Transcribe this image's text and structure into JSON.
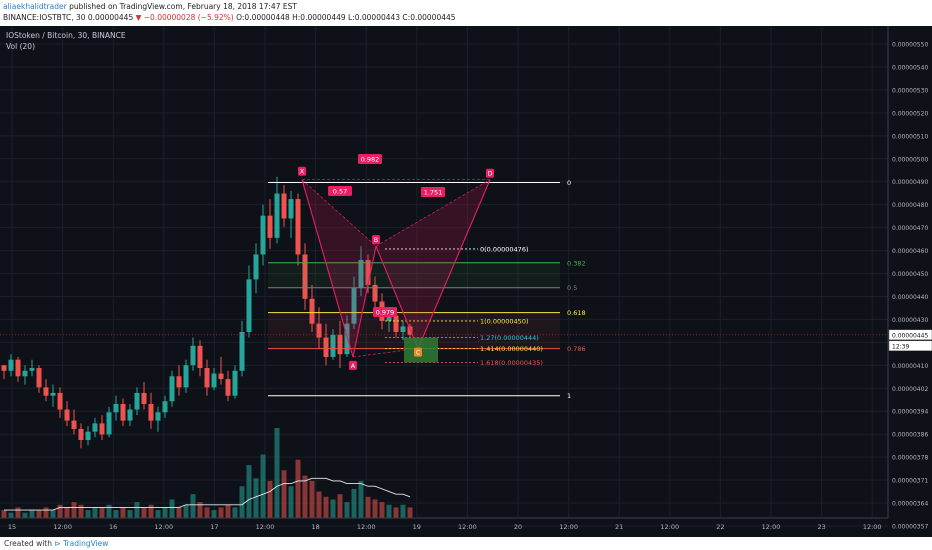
{
  "header": {
    "user": "aliaekhalidtrader",
    "published": "published on TradingView.com, February 18, 2018 17:47 EST",
    "ticker_line": "BINANCE:IOSTBTC, 30  0.00000445",
    "change": "▼ −0.00000028 (−5.92%)",
    "ohlc": "O:0.00000448  H:0.00000449  L:0.00000443  C:0.00000445"
  },
  "legend": {
    "symbol": "IOStoken / Bitcoin, 30, BINANCE",
    "volume": "Vol (20)"
  },
  "footer": {
    "created_with": "Created with",
    "brand": "TradingView"
  },
  "colors": {
    "background": "#0e1218",
    "up": "#26a69a",
    "down": "#ef5350",
    "pattern": "#e91e63",
    "fib_green": "#4caf50",
    "fib_yellow": "#ffeb3b",
    "fib_red": "#ef5350",
    "price_badge": "#c62828",
    "target_box": "#2e7d32"
  },
  "chart_data": {
    "type": "candlestick",
    "price_axis": {
      "range": [
        3.55e-06,
        5.5e-06
      ],
      "ticks": [
        "0.00000550",
        "0.00000540",
        "0.00000530",
        "0.00000520",
        "0.00000510",
        "0.00000500",
        "0.00000490",
        "0.00000480",
        "0.00000470",
        "0.00000460",
        "0.00000450",
        "0.00000440",
        "0.00000430",
        "0.00000420",
        "0.00000410",
        "0.00000402",
        "0.00000394",
        "0.00000386",
        "0.00000378",
        "0.00000371",
        "0.00000364",
        "0.00000357"
      ],
      "last_price": "0.00000445",
      "countdown": "12:39"
    },
    "time_axis": [
      "15",
      "12:00",
      "16",
      "12:00",
      "17",
      "12:00",
      "18",
      "12:00",
      "19",
      "12:00",
      "20",
      "12:00",
      "21",
      "12:00",
      "22",
      "12:00",
      "23",
      "12:00"
    ],
    "ohlc": [
      [
        4.34e-06,
        4.34e-06,
        4.29e-06,
        4.32e-06
      ],
      [
        4.32e-06,
        4.38e-06,
        4.3e-06,
        4.36e-06
      ],
      [
        4.36e-06,
        4.37e-06,
        4.28e-06,
        4.3e-06
      ],
      [
        4.3e-06,
        4.34e-06,
        4.27e-06,
        4.32e-06
      ],
      [
        4.32e-06,
        4.36e-06,
        4.3e-06,
        4.33e-06
      ],
      [
        4.33e-06,
        4.34e-06,
        4.24e-06,
        4.26e-06
      ],
      [
        4.26e-06,
        4.29e-06,
        4.21e-06,
        4.23e-06
      ],
      [
        4.23e-06,
        4.27e-06,
        4.19e-06,
        4.24e-06
      ],
      [
        4.24e-06,
        4.26e-06,
        4.15e-06,
        4.18e-06
      ],
      [
        4.18e-06,
        4.21e-06,
        4.12e-06,
        4.14e-06
      ],
      [
        4.14e-06,
        4.18e-06,
        4.09e-06,
        4.11e-06
      ],
      [
        4.11e-06,
        4.13e-06,
        4.04e-06,
        4.07e-06
      ],
      [
        4.07e-06,
        4.12e-06,
        4.05e-06,
        4.1e-06
      ],
      [
        4.1e-06,
        4.15e-06,
        4.08e-06,
        4.13e-06
      ],
      [
        4.13e-06,
        4.16e-06,
        4.07e-06,
        4.09e-06
      ],
      [
        4.09e-06,
        4.19e-06,
        4.08e-06,
        4.17e-06
      ],
      [
        4.17e-06,
        4.23e-06,
        4.14e-06,
        4.2e-06
      ],
      [
        4.2e-06,
        4.22e-06,
        4.12e-06,
        4.14e-06
      ],
      [
        4.14e-06,
        4.2e-06,
        4.12e-06,
        4.18e-06
      ],
      [
        4.18e-06,
        4.26e-06,
        4.16e-06,
        4.24e-06
      ],
      [
        4.24e-06,
        4.28e-06,
        4.18e-06,
        4.2e-06
      ],
      [
        4.2e-06,
        4.24e-06,
        4.11e-06,
        4.14e-06
      ],
      [
        4.14e-06,
        4.19e-06,
        4.1e-06,
        4.17e-06
      ],
      [
        4.17e-06,
        4.23e-06,
        4.15e-06,
        4.21e-06
      ],
      [
        4.21e-06,
        4.32e-06,
        4.19e-06,
        4.3e-06
      ],
      [
        4.3e-06,
        4.34e-06,
        4.23e-06,
        4.26e-06
      ],
      [
        4.26e-06,
        4.36e-06,
        4.24e-06,
        4.34e-06
      ],
      [
        4.34e-06,
        4.44e-06,
        4.32e-06,
        4.41e-06
      ],
      [
        4.41e-06,
        4.43e-06,
        4.3e-06,
        4.33e-06
      ],
      [
        4.33e-06,
        4.36e-06,
        4.23e-06,
        4.26e-06
      ],
      [
        4.26e-06,
        4.33e-06,
        4.25e-06,
        4.31e-06
      ],
      [
        4.31e-06,
        4.37e-06,
        4.27e-06,
        4.29e-06
      ],
      [
        4.29e-06,
        4.32e-06,
        4.21e-06,
        4.23e-06
      ],
      [
        4.23e-06,
        4.34e-06,
        4.22e-06,
        4.32e-06
      ],
      [
        4.32e-06,
        4.5e-06,
        4.3e-06,
        4.46e-06
      ],
      [
        4.46e-06,
        4.7e-06,
        4.44e-06,
        4.65e-06
      ],
      [
        4.65e-06,
        4.78e-06,
        4.6e-06,
        4.74e-06
      ],
      [
        4.74e-06,
        4.92e-06,
        4.7e-06,
        4.88e-06
      ],
      [
        4.88e-06,
        4.94e-06,
        4.76e-06,
        4.8e-06
      ],
      [
        4.8e-06,
        5.02e-06,
        4.78e-06,
        4.96e-06
      ],
      [
        4.96e-06,
        4.99e-06,
        4.84e-06,
        4.87e-06
      ],
      [
        4.87e-06,
        4.97e-06,
        4.8e-06,
        4.94e-06
      ],
      [
        4.94e-06,
        4.96e-06,
        4.7e-06,
        4.74e-06
      ],
      [
        4.74e-06,
        4.78e-06,
        4.54e-06,
        4.58e-06
      ],
      [
        4.58e-06,
        4.63e-06,
        4.46e-06,
        4.49e-06
      ],
      [
        4.49e-06,
        4.55e-06,
        4.4e-06,
        4.44e-06
      ],
      [
        4.44e-06,
        4.49e-06,
        4.34e-06,
        4.37e-06
      ],
      [
        4.37e-06,
        4.47e-06,
        4.36e-06,
        4.45e-06
      ],
      [
        4.45e-06,
        4.5e-06,
        4.33e-06,
        4.38e-06
      ],
      [
        4.38e-06,
        4.52e-06,
        4.37e-06,
        4.49e-06
      ],
      [
        4.49e-06,
        4.66e-06,
        4.47e-06,
        4.62e-06
      ],
      [
        4.62e-06,
        4.77e-06,
        4.59e-06,
        4.72e-06
      ],
      [
        4.72e-06,
        4.74e-06,
        4.6e-06,
        4.63e-06
      ],
      [
        4.63e-06,
        4.66e-06,
        4.54e-06,
        4.57e-06
      ],
      [
        4.57e-06,
        4.6e-06,
        4.47e-06,
        4.5e-06
      ],
      [
        4.5e-06,
        4.54e-06,
        4.46e-06,
        4.52e-06
      ],
      [
        4.52e-06,
        4.54e-06,
        4.44e-06,
        4.46e-06
      ],
      [
        4.46e-06,
        4.5e-06,
        4.43e-06,
        4.48e-06
      ],
      [
        4.48e-06,
        4.49e-06,
        4.43e-06,
        4.45e-06
      ]
    ],
    "volume": [
      3,
      2,
      4,
      2,
      3,
      3,
      4,
      3,
      5,
      4,
      6,
      5,
      3,
      4,
      4,
      5,
      3,
      4,
      3,
      6,
      4,
      5,
      3,
      4,
      7,
      4,
      5,
      9,
      6,
      4,
      3,
      4,
      5,
      4,
      12,
      20,
      15,
      24,
      14,
      34,
      18,
      12,
      22,
      16,
      14,
      10,
      8,
      7,
      9,
      6,
      11,
      14,
      8,
      7,
      6,
      5,
      4,
      5,
      4
    ],
    "volume_ma": [
      3,
      3,
      3,
      3,
      3,
      3,
      3,
      3,
      4,
      4,
      4,
      4,
      4,
      4,
      4,
      4,
      4,
      4,
      4,
      4,
      4,
      4,
      4,
      4,
      4,
      4,
      5,
      5,
      5,
      5,
      5,
      5,
      5,
      5,
      5,
      7,
      8,
      9,
      10,
      12,
      13,
      13,
      14,
      14,
      15,
      15,
      15,
      14,
      14,
      13,
      13,
      13,
      12,
      12,
      11,
      10,
      9,
      9,
      8
    ],
    "harmonic_pattern": {
      "points": [
        "X",
        "A",
        "B",
        "C",
        "D"
      ],
      "ratios": {
        "XB": "0.57",
        "AC": "0.979",
        "BD": "1.751",
        "XD": "0.982"
      }
    },
    "fib_left": {
      "levels": [
        "0",
        "0.382",
        "0.5",
        "0.618",
        "0.786",
        "1"
      ],
      "values": [
        5e-06,
        4.71e-06,
        4.62e-06,
        4.53e-06,
        4.4e-06,
        4.23e-06
      ]
    },
    "fib_right": {
      "levels": [
        "0(0.00000476)",
        "1(0.00000450)",
        "1.27(0.00000444)",
        "1.414(0.00000440)",
        "1.618(0.00000435)"
      ],
      "values": [
        4.76e-06,
        4.5e-06,
        4.44e-06,
        4.4e-06,
        4.35e-06
      ]
    }
  }
}
